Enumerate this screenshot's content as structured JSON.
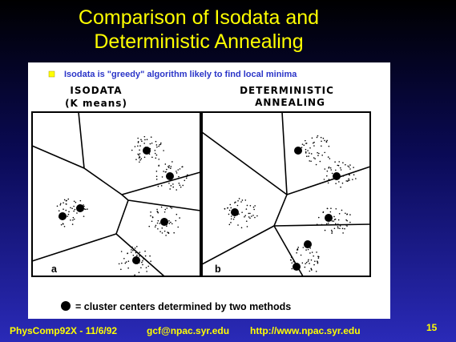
{
  "slide": {
    "title": [
      "Comparison of Isodata and",
      "Deterministic Annealing"
    ],
    "bullet": "Isodata is \"greedy\" algorithm likely to find local minima",
    "figure": {
      "left_heading": [
        "ISODATA",
        "(K means)"
      ],
      "right_heading": [
        "DETERMINISTIC",
        "ANNEALING"
      ],
      "left_label": "a",
      "right_label": "b",
      "legend": "= cluster centers determined by two methods"
    },
    "footer": {
      "course": "PhysComp92X - 11/6/92",
      "email": "gcf@npac.syr.edu",
      "url": "http://www.npac.syr.edu",
      "page": "15"
    }
  }
}
